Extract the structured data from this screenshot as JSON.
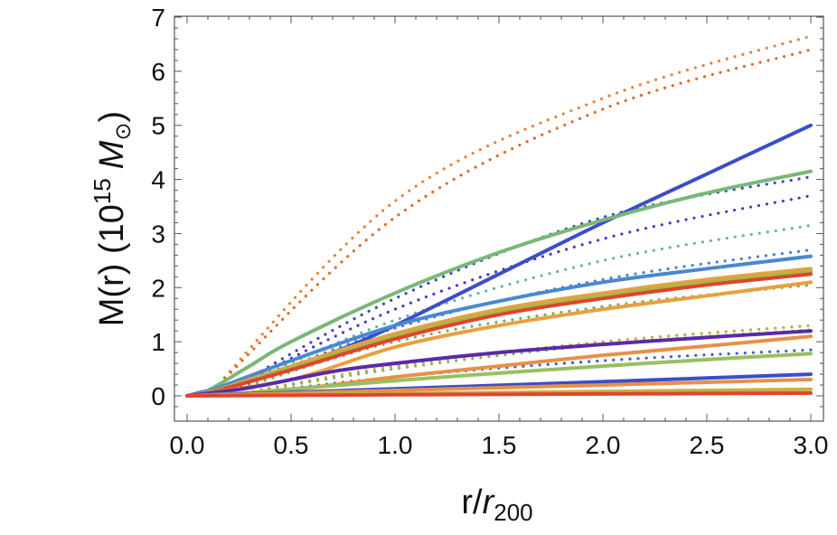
{
  "chart_data": {
    "type": "line",
    "xlabel": {
      "main": "r/",
      "italic": "r",
      "sub": "200"
    },
    "ylabel": {
      "main": "M(r) (10",
      "sup": "15",
      "italic": "M",
      "sub": "⊙",
      "close": ")"
    },
    "xlim": [
      0,
      3
    ],
    "ylim": [
      -0.3,
      7
    ],
    "x_ticks": [
      "0.0",
      "0.5",
      "1.0",
      "1.5",
      "2.0",
      "2.5",
      "3.0"
    ],
    "y_ticks": [
      "0",
      "1",
      "2",
      "3",
      "4",
      "5",
      "6",
      "7"
    ],
    "grid": false,
    "legend": "none",
    "series": [
      {
        "style": "dotted",
        "color": "#e8823a",
        "x": [
          0.1,
          1.0,
          2.0,
          3.0
        ],
        "y": [
          0.0,
          3.6,
          5.5,
          6.65
        ]
      },
      {
        "style": "dotted",
        "color": "#e06a2e",
        "x": [
          0.1,
          1.0,
          2.0,
          3.0
        ],
        "y": [
          0.0,
          3.3,
          5.3,
          6.4
        ]
      },
      {
        "style": "dotted",
        "color": "#3c46c0",
        "x": [
          0.15,
          1.0,
          2.0,
          3.0
        ],
        "y": [
          0.0,
          1.8,
          3.3,
          4.05
        ]
      },
      {
        "style": "dotted",
        "color": "#4a3ac8",
        "x": [
          0.15,
          1.0,
          2.0,
          3.0
        ],
        "y": [
          0.0,
          1.6,
          2.9,
          3.7
        ]
      },
      {
        "style": "dotted",
        "color": "#6cb0a8",
        "x": [
          0.15,
          1.0,
          2.0,
          3.0
        ],
        "y": [
          0.0,
          1.4,
          2.5,
          3.15
        ]
      },
      {
        "style": "dotted",
        "color": "#4a80d0",
        "x": [
          0.15,
          1.0,
          2.0,
          3.0
        ],
        "y": [
          0.0,
          1.25,
          2.15,
          2.7
        ]
      },
      {
        "style": "dotted",
        "color": "#e03b2b",
        "x": [
          0.15,
          1.0,
          2.0,
          3.0
        ],
        "y": [
          0.0,
          1.15,
          1.9,
          2.3
        ]
      },
      {
        "style": "dotted",
        "color": "#78b060",
        "x": [
          0.15,
          1.0,
          2.0,
          3.0
        ],
        "y": [
          0.0,
          1.0,
          1.65,
          2.05
        ]
      },
      {
        "style": "dotted",
        "color": "#b8b040",
        "x": [
          0.2,
          1.0,
          2.0,
          3.0
        ],
        "y": [
          0.0,
          0.55,
          1.0,
          1.3
        ]
      },
      {
        "style": "dotted",
        "color": "#90b050",
        "x": [
          0.2,
          1.0,
          2.0,
          3.0
        ],
        "y": [
          0.0,
          0.5,
          0.95,
          1.22
        ]
      },
      {
        "style": "dotted",
        "color": "#4a60c8",
        "x": [
          0.2,
          1.0,
          2.0,
          3.0
        ],
        "y": [
          0.0,
          0.35,
          0.65,
          0.85
        ]
      },
      {
        "style": "solid",
        "color": "#3b4ec8",
        "x": [
          0.0,
          0.3,
          0.7,
          1.0,
          1.5,
          2.0,
          2.5,
          3.0
        ],
        "y": [
          0.0,
          0.3,
          0.8,
          1.3,
          2.25,
          3.2,
          4.1,
          5.0
        ]
      },
      {
        "style": "solid",
        "color": "#78b878",
        "x": [
          0.0,
          0.1,
          0.3,
          0.5,
          1.0,
          1.5,
          2.0,
          2.5,
          3.0
        ],
        "y": [
          0.0,
          0.1,
          0.55,
          1.0,
          1.9,
          2.65,
          3.25,
          3.75,
          4.15
        ]
      },
      {
        "style": "solid",
        "color": "#4a88d0",
        "x": [
          0.0,
          0.1,
          0.5,
          1.0,
          1.5,
          2.0,
          2.5,
          3.0
        ],
        "y": [
          0.0,
          0.08,
          0.65,
          1.3,
          1.75,
          2.1,
          2.35,
          2.58
        ]
      },
      {
        "style": "solid",
        "color": "#e8a040",
        "x": [
          0.0,
          0.1,
          0.5,
          1.0,
          1.5,
          2.0,
          2.5,
          3.0
        ],
        "y": [
          0.0,
          0.06,
          0.55,
          1.15,
          1.6,
          1.9,
          2.15,
          2.35
        ]
      },
      {
        "style": "solid",
        "color": "#a8b848",
        "x": [
          0.0,
          0.1,
          0.5,
          1.0,
          1.5,
          2.0,
          2.5,
          3.0
        ],
        "y": [
          0.0,
          0.06,
          0.52,
          1.1,
          1.55,
          1.85,
          2.1,
          2.3
        ]
      },
      {
        "style": "solid",
        "color": "#e0442e",
        "x": [
          0.0,
          0.1,
          0.5,
          1.0,
          1.5,
          2.0,
          2.5,
          3.0
        ],
        "y": [
          0.0,
          0.05,
          0.48,
          1.05,
          1.5,
          1.8,
          2.05,
          2.25
        ]
      },
      {
        "style": "solid",
        "color": "#e8a040",
        "x": [
          0.0,
          0.5,
          1.0,
          1.5,
          2.0,
          2.5,
          3.0
        ],
        "y": [
          0.0,
          0.3,
          0.9,
          1.3,
          1.6,
          1.85,
          2.1
        ]
      },
      {
        "style": "solid",
        "color": "#5a2aa8",
        "x": [
          0.0,
          0.3,
          0.7,
          1.0,
          1.5,
          2.0,
          2.5,
          3.0
        ],
        "y": [
          0.0,
          0.15,
          0.45,
          0.6,
          0.8,
          0.95,
          1.08,
          1.2
        ]
      },
      {
        "style": "solid",
        "color": "#e89048",
        "x": [
          0.0,
          0.3,
          0.7,
          1.0,
          1.5,
          2.0,
          2.5,
          3.0
        ],
        "y": [
          0.0,
          0.05,
          0.2,
          0.35,
          0.55,
          0.75,
          0.92,
          1.1
        ]
      },
      {
        "style": "solid",
        "color": "#98c060",
        "x": [
          0.0,
          0.3,
          1.0,
          1.5,
          2.0,
          2.5,
          3.0
        ],
        "y": [
          0.0,
          0.06,
          0.28,
          0.42,
          0.55,
          0.67,
          0.78
        ]
      },
      {
        "style": "solid",
        "color": "#3b4ec8",
        "x": [
          0.0,
          1.0,
          2.0,
          3.0
        ],
        "y": [
          0.0,
          0.13,
          0.26,
          0.4
        ]
      },
      {
        "style": "solid",
        "color": "#e89048",
        "x": [
          0.0,
          1.0,
          2.0,
          3.0
        ],
        "y": [
          0.0,
          0.1,
          0.2,
          0.3
        ]
      },
      {
        "style": "solid",
        "color": "#c8b040",
        "x": [
          0.0,
          1.0,
          2.0,
          3.0
        ],
        "y": [
          0.0,
          0.04,
          0.08,
          0.12
        ]
      },
      {
        "style": "solid",
        "color": "#e0442e",
        "x": [
          0.0,
          1.0,
          2.0,
          3.0
        ],
        "y": [
          0.0,
          0.02,
          0.035,
          0.05
        ]
      }
    ]
  }
}
